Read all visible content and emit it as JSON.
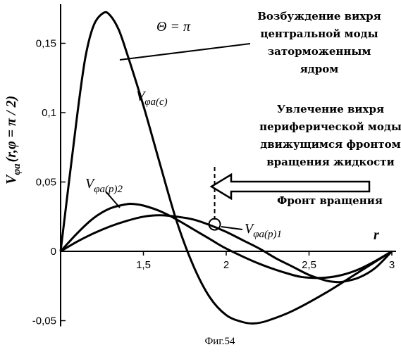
{
  "chart_data": {
    "type": "line",
    "xlabel": "r",
    "ylabel": "V",
    "ylabel_sub": "φa",
    "ylabel_args": "(r,φ = π / 2)",
    "xlim": [
      1.0,
      3.0
    ],
    "ylim": [
      -0.05,
      0.17
    ],
    "x_ticks": [
      {
        "value": 1.5,
        "label": "1,5"
      },
      {
        "value": 2.0,
        "label": "2"
      },
      {
        "value": 2.5,
        "label": "2,5"
      },
      {
        "value": 3.0,
        "label": "3"
      }
    ],
    "y_ticks": [
      {
        "value": -0.05,
        "label": "-0,05"
      },
      {
        "value": 0.0,
        "label": "0"
      },
      {
        "value": 0.05,
        "label": "0,05"
      },
      {
        "value": 0.1,
        "label": "0,1"
      },
      {
        "value": 0.15,
        "label": "0,15"
      }
    ],
    "grid": false,
    "series": [
      {
        "name": "Vφa(c)",
        "label_parts": {
          "main": "V",
          "sub": "φa(c)"
        },
        "x": [
          1.0,
          1.1,
          1.15,
          1.2,
          1.26,
          1.3,
          1.35,
          1.4,
          1.5,
          1.6,
          1.7,
          1.8,
          1.9,
          2.0,
          2.1,
          2.17,
          2.25,
          2.4,
          2.6,
          2.8,
          3.0
        ],
        "y": [
          0.0,
          0.098,
          0.14,
          0.163,
          0.172,
          0.17,
          0.16,
          0.143,
          0.105,
          0.063,
          0.022,
          -0.01,
          -0.033,
          -0.046,
          -0.051,
          -0.052,
          -0.05,
          -0.043,
          -0.03,
          -0.015,
          0.0
        ]
      },
      {
        "name": "Vφa(p)2",
        "label_parts": {
          "main": "V",
          "sub": "φa(p)2"
        },
        "x": [
          1.0,
          1.1,
          1.2,
          1.3,
          1.4,
          1.45,
          1.5,
          1.6,
          1.7,
          1.8,
          1.9,
          2.0,
          2.2,
          2.4,
          2.5,
          2.6,
          2.7,
          2.8,
          2.9,
          3.0
        ],
        "y": [
          0.0,
          0.013,
          0.024,
          0.031,
          0.034,
          0.034,
          0.033,
          0.029,
          0.023,
          0.016,
          0.009,
          0.002,
          -0.009,
          -0.017,
          -0.019,
          -0.019,
          -0.017,
          -0.013,
          -0.007,
          0.0
        ]
      },
      {
        "name": "Vφa(p)1",
        "label_parts": {
          "main": "V",
          "sub": "φa(p)1"
        },
        "x": [
          1.0,
          1.1,
          1.2,
          1.3,
          1.4,
          1.5,
          1.6,
          1.7,
          1.8,
          1.9,
          2.0,
          2.1,
          2.2,
          2.3,
          2.4,
          2.5,
          2.6,
          2.65,
          2.7,
          2.8,
          2.9,
          3.0
        ],
        "y": [
          0.0,
          0.007,
          0.013,
          0.018,
          0.022,
          0.025,
          0.026,
          0.025,
          0.023,
          0.019,
          0.014,
          0.008,
          0.002,
          -0.005,
          -0.011,
          -0.017,
          -0.021,
          -0.022,
          -0.022,
          -0.019,
          -0.012,
          0.0
        ]
      }
    ],
    "annotations": {
      "theta": "Θ = π",
      "central_mode_lines": [
        "Возбуждение вихря",
        "центральной моды",
        "заторможенным",
        "ядром"
      ],
      "peripheral_mode_lines": [
        "Увлечение вихря",
        "периферической моды",
        "движущимся фронтом",
        "вращения жидкости"
      ],
      "front_label": "Фронт вращения",
      "front_x": 1.93,
      "marker": {
        "x": 1.93,
        "y": 0.0195
      }
    },
    "caption": "Фиг.54"
  }
}
